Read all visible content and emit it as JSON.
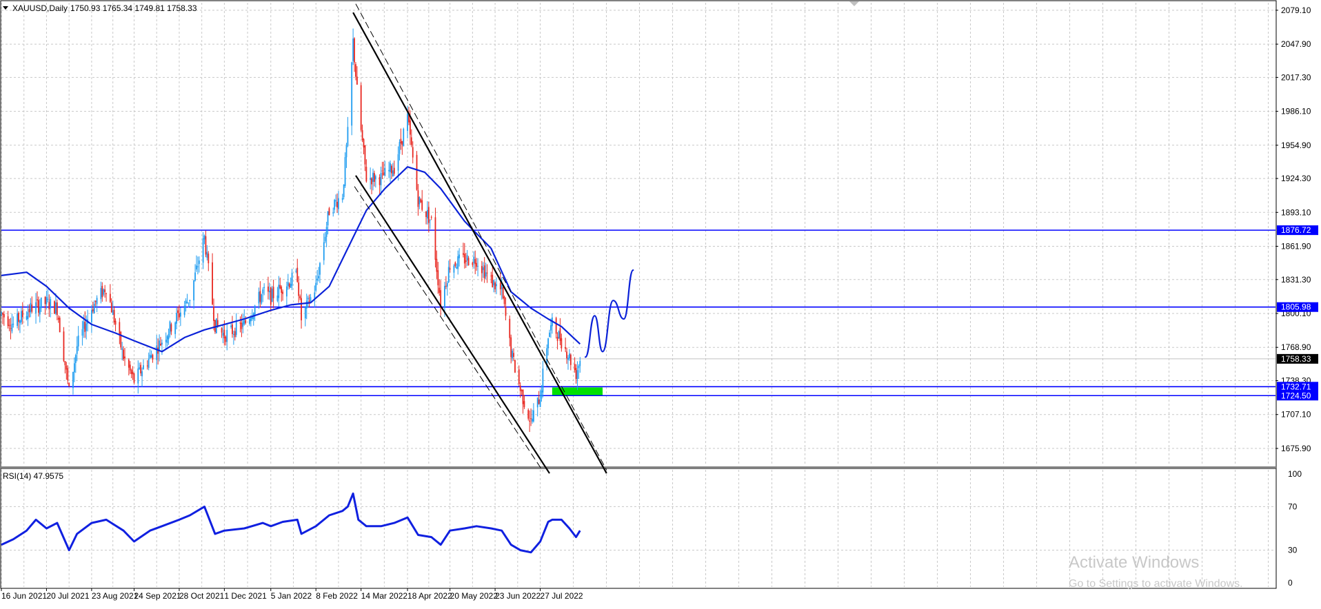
{
  "chart_data": [
    {
      "type": "candlestick",
      "symbol_header": "XAUUSD,Daily",
      "ohlc_header": "1750.93 1765.34 1749.81 1758.33",
      "ylim": [
        1660,
        2086
      ],
      "y_ticks": [
        "2079.10",
        "2047.90",
        "2017.30",
        "1986.10",
        "1954.90",
        "1924.30",
        "1893.10",
        "1861.90",
        "1831.30",
        "1800.10",
        "1768.90",
        "1738.30",
        "1707.10",
        "1675.90"
      ],
      "date_range": [
        "2021-06-16",
        "2022-08-09"
      ],
      "x_ticks": [
        {
          "date": "2021-06-16",
          "label": "16 Jun 2021"
        },
        {
          "date": "2021-07-20",
          "label": "20 Jul 2021"
        },
        {
          "date": "2021-08-23",
          "label": "23 Aug 2021"
        },
        {
          "date": "2021-09-24",
          "label": "24 Sep 2021"
        },
        {
          "date": "2021-10-28",
          "label": "28 Oct 2021"
        },
        {
          "date": "2021-12-01",
          "label": "1 Dec 2021"
        },
        {
          "date": "2022-01-05",
          "label": "5 Jan 2022"
        },
        {
          "date": "2022-02-08",
          "label": "8 Feb 2022"
        },
        {
          "date": "2022-03-14",
          "label": "14 Mar 2022"
        },
        {
          "date": "2022-04-18",
          "label": "18 Apr 2022"
        },
        {
          "date": "2022-05-20",
          "label": "20 May 2022"
        },
        {
          "date": "2022-06-23",
          "label": "23 Jun 2022"
        },
        {
          "date": "2022-07-27",
          "label": "27 Jul 2022"
        }
      ],
      "close_path": [
        [
          "2021-06-16",
          1800
        ],
        [
          "2021-06-25",
          1790
        ],
        [
          "2021-07-08",
          1805
        ],
        [
          "2021-07-20",
          1810
        ],
        [
          "2021-07-28",
          1805
        ],
        [
          "2021-08-06",
          1728
        ],
        [
          "2021-08-12",
          1770
        ],
        [
          "2021-08-23",
          1805
        ],
        [
          "2021-09-03",
          1825
        ],
        [
          "2021-09-16",
          1760
        ],
        [
          "2021-09-24",
          1738
        ],
        [
          "2021-10-06",
          1760
        ],
        [
          "2021-10-15",
          1775
        ],
        [
          "2021-10-28",
          1800
        ],
        [
          "2021-11-05",
          1815
        ],
        [
          "2021-11-16",
          1870
        ],
        [
          "2021-11-24",
          1790
        ],
        [
          "2021-12-01",
          1780
        ],
        [
          "2021-12-16",
          1790
        ],
        [
          "2021-12-30",
          1820
        ],
        [
          "2022-01-05",
          1815
        ],
        [
          "2022-01-14",
          1825
        ],
        [
          "2022-01-25",
          1835
        ],
        [
          "2022-01-28",
          1795
        ],
        [
          "2022-02-08",
          1825
        ],
        [
          "2022-02-18",
          1895
        ],
        [
          "2022-02-28",
          1910
        ],
        [
          "2022-03-04",
          1965
        ],
        [
          "2022-03-08",
          2050
        ],
        [
          "2022-03-12",
          1990
        ],
        [
          "2022-03-18",
          1925
        ],
        [
          "2022-03-29",
          1925
        ],
        [
          "2022-04-08",
          1935
        ],
        [
          "2022-04-18",
          1980
        ],
        [
          "2022-04-26",
          1905
        ],
        [
          "2022-05-06",
          1885
        ],
        [
          "2022-05-13",
          1810
        ],
        [
          "2022-05-20",
          1845
        ],
        [
          "2022-05-31",
          1850
        ],
        [
          "2022-06-09",
          1850
        ],
        [
          "2022-06-20",
          1830
        ],
        [
          "2022-06-28",
          1820
        ],
        [
          "2022-07-05",
          1765
        ],
        [
          "2022-07-12",
          1730
        ],
        [
          "2022-07-20",
          1700
        ],
        [
          "2022-07-27",
          1725
        ],
        [
          "2022-08-02",
          1780
        ],
        [
          "2022-08-05",
          1790
        ],
        [
          "2022-08-12",
          1775
        ],
        [
          "2022-08-18",
          1760
        ],
        [
          "2022-08-23",
          1745
        ],
        [
          "2022-08-26",
          1758
        ]
      ],
      "ma_path": [
        [
          "2021-06-16",
          1835
        ],
        [
          "2021-07-05",
          1838
        ],
        [
          "2021-07-20",
          1825
        ],
        [
          "2021-08-06",
          1805
        ],
        [
          "2021-08-23",
          1790
        ],
        [
          "2021-09-10",
          1782
        ],
        [
          "2021-09-24",
          1775
        ],
        [
          "2021-10-15",
          1765
        ],
        [
          "2021-11-01",
          1778
        ],
        [
          "2021-11-16",
          1785
        ],
        [
          "2021-12-01",
          1790
        ],
        [
          "2021-12-16",
          1795
        ],
        [
          "2022-01-05",
          1803
        ],
        [
          "2022-01-20",
          1808
        ],
        [
          "2022-02-04",
          1810
        ],
        [
          "2022-02-18",
          1825
        ],
        [
          "2022-03-04",
          1860
        ],
        [
          "2022-03-18",
          1895
        ],
        [
          "2022-04-01",
          1915
        ],
        [
          "2022-04-18",
          1935
        ],
        [
          "2022-05-01",
          1930
        ],
        [
          "2022-05-13",
          1915
        ],
        [
          "2022-05-31",
          1885
        ],
        [
          "2022-06-20",
          1860
        ],
        [
          "2022-07-05",
          1820
        ],
        [
          "2022-07-20",
          1805
        ],
        [
          "2022-08-02",
          1795
        ],
        [
          "2022-08-12",
          1788
        ],
        [
          "2022-08-26",
          1772
        ]
      ],
      "horizontal_levels": [
        {
          "value": 1876.72,
          "label": "1876.72"
        },
        {
          "value": 1805.98,
          "label": "1805.98"
        },
        {
          "value": 1732.71,
          "label": "1732.71"
        },
        {
          "value": 1724.5,
          "label": "1724.50"
        }
      ],
      "last_price": {
        "value": 1758.33,
        "label": "1758.33"
      },
      "channel_lines": [
        {
          "start": [
            "2022-03-08",
            2077
          ],
          "end": [
            "2022-09-15",
            1653
          ],
          "style": "solid"
        },
        {
          "start": [
            "2022-03-10",
            1927
          ],
          "end": [
            "2022-08-03",
            1653
          ],
          "style": "solid"
        },
        {
          "start": [
            "2022-03-10",
            2085
          ],
          "end": [
            "2022-09-15",
            1656
          ],
          "style": "dashed"
        },
        {
          "start": [
            "2022-03-09",
            1917
          ],
          "end": [
            "2022-07-29",
            1655
          ],
          "style": "dashed"
        }
      ],
      "support_zone": {
        "from": "2022-08-05",
        "to": "2022-09-12",
        "low": 1725,
        "high": 1732
      },
      "forecast_path": [
        [
          "2022-08-30",
          1760
        ],
        [
          "2022-09-06",
          1798
        ],
        [
          "2022-09-12",
          1765
        ],
        [
          "2022-09-20",
          1812
        ],
        [
          "2022-09-28",
          1795
        ],
        [
          "2022-10-05",
          1840
        ]
      ]
    },
    {
      "type": "line",
      "label": "RSI(14) 47.9575",
      "ylim": [
        0,
        100
      ],
      "y_ticks": [
        "100",
        "70",
        "30",
        "0"
      ],
      "values": [
        [
          "2021-06-16",
          35
        ],
        [
          "2021-06-25",
          40
        ],
        [
          "2021-07-05",
          48
        ],
        [
          "2021-07-12",
          58
        ],
        [
          "2021-07-20",
          50
        ],
        [
          "2021-07-28",
          55
        ],
        [
          "2021-08-06",
          30
        ],
        [
          "2021-08-12",
          45
        ],
        [
          "2021-08-23",
          55
        ],
        [
          "2021-09-03",
          58
        ],
        [
          "2021-09-16",
          48
        ],
        [
          "2021-09-24",
          38
        ],
        [
          "2021-10-06",
          48
        ],
        [
          "2021-10-15",
          52
        ],
        [
          "2021-10-28",
          58
        ],
        [
          "2021-11-05",
          62
        ],
        [
          "2021-11-16",
          70
        ],
        [
          "2021-11-24",
          45
        ],
        [
          "2021-12-01",
          48
        ],
        [
          "2021-12-16",
          50
        ],
        [
          "2021-12-30",
          55
        ],
        [
          "2022-01-05",
          52
        ],
        [
          "2022-01-14",
          56
        ],
        [
          "2022-01-25",
          58
        ],
        [
          "2022-01-28",
          45
        ],
        [
          "2022-02-08",
          52
        ],
        [
          "2022-02-18",
          62
        ],
        [
          "2022-02-28",
          66
        ],
        [
          "2022-03-04",
          70
        ],
        [
          "2022-03-08",
          82
        ],
        [
          "2022-03-12",
          58
        ],
        [
          "2022-03-18",
          52
        ],
        [
          "2022-03-29",
          52
        ],
        [
          "2022-04-08",
          55
        ],
        [
          "2022-04-18",
          60
        ],
        [
          "2022-04-26",
          44
        ],
        [
          "2022-05-06",
          42
        ],
        [
          "2022-05-13",
          35
        ],
        [
          "2022-05-20",
          48
        ],
        [
          "2022-05-31",
          50
        ],
        [
          "2022-06-09",
          52
        ],
        [
          "2022-06-20",
          50
        ],
        [
          "2022-06-28",
          48
        ],
        [
          "2022-07-05",
          35
        ],
        [
          "2022-07-12",
          30
        ],
        [
          "2022-07-20",
          28
        ],
        [
          "2022-07-27",
          38
        ],
        [
          "2022-08-02",
          56
        ],
        [
          "2022-08-05",
          58
        ],
        [
          "2022-08-12",
          58
        ],
        [
          "2022-08-18",
          50
        ],
        [
          "2022-08-23",
          42
        ],
        [
          "2022-08-26",
          48
        ]
      ]
    }
  ],
  "watermark": {
    "title": "Activate Windows",
    "subtitle": "Go to Settings to activate Windows."
  },
  "colors": {
    "bull": "#1e9cf0",
    "bear": "#e8261f",
    "level": "#0000ff",
    "ma": "#0b22d8",
    "rsi": "#1020e0",
    "zone": "#00e000",
    "grid": "#c8c8c8",
    "text": "#000000"
  }
}
